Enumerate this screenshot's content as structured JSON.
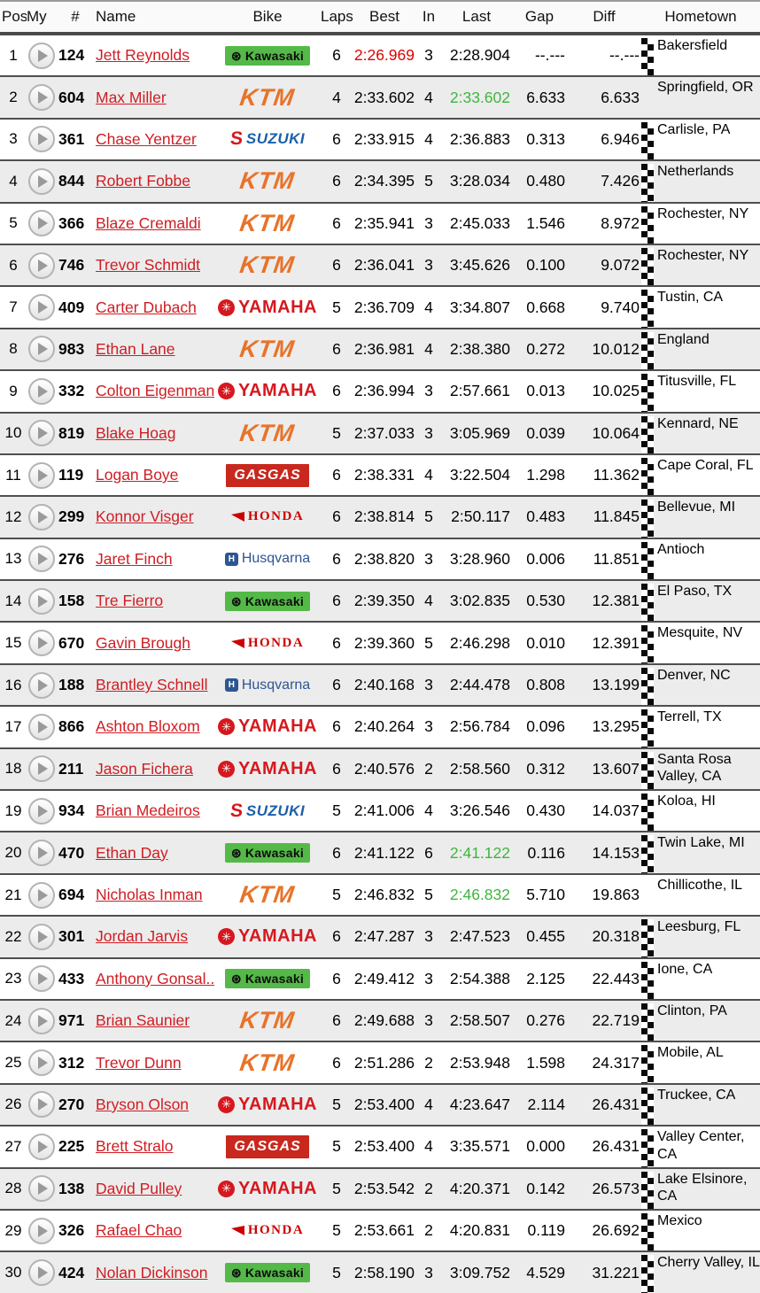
{
  "columns": [
    {
      "key": "pos",
      "label": "Pos"
    },
    {
      "key": "my",
      "label": "My"
    },
    {
      "key": "num",
      "label": "#"
    },
    {
      "key": "name",
      "label": "Name"
    },
    {
      "key": "bike",
      "label": "Bike"
    },
    {
      "key": "laps",
      "label": "Laps"
    },
    {
      "key": "best",
      "label": "Best"
    },
    {
      "key": "in",
      "label": "In"
    },
    {
      "key": "last",
      "label": "Last"
    },
    {
      "key": "gap",
      "label": "Gap"
    },
    {
      "key": "diff",
      "label": "Diff"
    },
    {
      "key": "hometown",
      "label": "Hometown"
    }
  ],
  "colors": {
    "best_overall": "#e00000",
    "personal_best_green": "#3fb53f",
    "row_alt": "#ececec",
    "row_border": "#4f4f4f",
    "name_link": "#cf1d23"
  },
  "icons": {
    "play": "play-icon",
    "checkered_flag": "checkered-flag-icon"
  },
  "brands": {
    "kawasaki": {
      "label": "Kawasaki",
      "bg": "#54b948",
      "fg": "#0d0d0d"
    },
    "ktm": {
      "label": "KTM",
      "color": "#e8732a"
    },
    "suzuki": {
      "label": "SUZUKI",
      "mark": "S",
      "text_color": "#1b5fa8",
      "mark_color": "#d6181e"
    },
    "yamaha": {
      "label": "YAMAHA",
      "color": "#d6181e"
    },
    "gasgas": {
      "label": "GASGAS",
      "bg": "#c8281e",
      "fg": "#ffffff"
    },
    "honda": {
      "label": "HONDA",
      "color": "#cc0000"
    },
    "husqvarna": {
      "label": "Husqvarna",
      "color": "#2d5693"
    }
  },
  "rows": [
    {
      "pos": "1",
      "num": "124",
      "name": "Jett Reynolds",
      "bike": "kawasaki",
      "laps": "6",
      "best": "2:26.969",
      "best_style": "red",
      "in": "3",
      "last": "2:28.904",
      "last_style": "",
      "gap": "--.---",
      "diff": "--.---",
      "hometown": "Bakersfield",
      "flag": true
    },
    {
      "pos": "2",
      "num": "604",
      "name": "Max Miller",
      "bike": "ktm",
      "laps": "4",
      "best": "2:33.602",
      "best_style": "",
      "in": "4",
      "last": "2:33.602",
      "last_style": "green",
      "gap": "6.633",
      "diff": "6.633",
      "hometown": "Springfield, OR",
      "flag": false
    },
    {
      "pos": "3",
      "num": "361",
      "name": "Chase Yentzer",
      "bike": "suzuki",
      "laps": "6",
      "best": "2:33.915",
      "best_style": "",
      "in": "4",
      "last": "2:36.883",
      "last_style": "",
      "gap": "0.313",
      "diff": "6.946",
      "hometown": "Carlisle, PA",
      "flag": true
    },
    {
      "pos": "4",
      "num": "844",
      "name": "Robert Fobbe",
      "bike": "ktm",
      "laps": "6",
      "best": "2:34.395",
      "best_style": "",
      "in": "5",
      "last": "3:28.034",
      "last_style": "",
      "gap": "0.480",
      "diff": "7.426",
      "hometown": "Netherlands",
      "flag": true
    },
    {
      "pos": "5",
      "num": "366",
      "name": "Blaze Cremaldi",
      "bike": "ktm",
      "laps": "6",
      "best": "2:35.941",
      "best_style": "",
      "in": "3",
      "last": "2:45.033",
      "last_style": "",
      "gap": "1.546",
      "diff": "8.972",
      "hometown": "Rochester, NY",
      "flag": true
    },
    {
      "pos": "6",
      "num": "746",
      "name": "Trevor Schmidt",
      "bike": "ktm",
      "laps": "6",
      "best": "2:36.041",
      "best_style": "",
      "in": "3",
      "last": "3:45.626",
      "last_style": "",
      "gap": "0.100",
      "diff": "9.072",
      "hometown": "Rochester, NY",
      "flag": true
    },
    {
      "pos": "7",
      "num": "409",
      "name": "Carter Dubach",
      "bike": "yamaha",
      "laps": "5",
      "best": "2:36.709",
      "best_style": "",
      "in": "4",
      "last": "3:34.807",
      "last_style": "",
      "gap": "0.668",
      "diff": "9.740",
      "hometown": "Tustin, CA",
      "flag": true
    },
    {
      "pos": "8",
      "num": "983",
      "name": "Ethan Lane",
      "bike": "ktm",
      "laps": "6",
      "best": "2:36.981",
      "best_style": "",
      "in": "4",
      "last": "2:38.380",
      "last_style": "",
      "gap": "0.272",
      "diff": "10.012",
      "hometown": "England",
      "flag": true
    },
    {
      "pos": "9",
      "num": "332",
      "name": "Colton Eigenmann",
      "bike": "yamaha",
      "laps": "6",
      "best": "2:36.994",
      "best_style": "",
      "in": "3",
      "last": "2:57.661",
      "last_style": "",
      "gap": "0.013",
      "diff": "10.025",
      "hometown": "Titusville, FL",
      "flag": true
    },
    {
      "pos": "10",
      "num": "819",
      "name": "Blake Hoag",
      "bike": "ktm",
      "laps": "5",
      "best": "2:37.033",
      "best_style": "",
      "in": "3",
      "last": "3:05.969",
      "last_style": "",
      "gap": "0.039",
      "diff": "10.064",
      "hometown": "Kennard, NE",
      "flag": true
    },
    {
      "pos": "11",
      "num": "119",
      "name": "Logan Boye",
      "bike": "gasgas",
      "laps": "6",
      "best": "2:38.331",
      "best_style": "",
      "in": "4",
      "last": "3:22.504",
      "last_style": "",
      "gap": "1.298",
      "diff": "11.362",
      "hometown": "Cape Coral, FL",
      "flag": true
    },
    {
      "pos": "12",
      "num": "299",
      "name": "Konnor Visger",
      "bike": "honda",
      "laps": "6",
      "best": "2:38.814",
      "best_style": "",
      "in": "5",
      "last": "2:50.117",
      "last_style": "",
      "gap": "0.483",
      "diff": "11.845",
      "hometown": "Bellevue, MI",
      "flag": true
    },
    {
      "pos": "13",
      "num": "276",
      "name": "Jaret Finch",
      "bike": "husqvarna",
      "laps": "6",
      "best": "2:38.820",
      "best_style": "",
      "in": "3",
      "last": "3:28.960",
      "last_style": "",
      "gap": "0.006",
      "diff": "11.851",
      "hometown": "Antioch",
      "flag": true
    },
    {
      "pos": "14",
      "num": "158",
      "name": "Tre Fierro",
      "bike": "kawasaki",
      "laps": "6",
      "best": "2:39.350",
      "best_style": "",
      "in": "4",
      "last": "3:02.835",
      "last_style": "",
      "gap": "0.530",
      "diff": "12.381",
      "hometown": "El Paso, TX",
      "flag": true
    },
    {
      "pos": "15",
      "num": "670",
      "name": "Gavin Brough",
      "bike": "honda",
      "laps": "6",
      "best": "2:39.360",
      "best_style": "",
      "in": "5",
      "last": "2:46.298",
      "last_style": "",
      "gap": "0.010",
      "diff": "12.391",
      "hometown": "Mesquite, NV",
      "flag": true
    },
    {
      "pos": "16",
      "num": "188",
      "name": "Brantley Schnell",
      "bike": "husqvarna",
      "laps": "6",
      "best": "2:40.168",
      "best_style": "",
      "in": "3",
      "last": "2:44.478",
      "last_style": "",
      "gap": "0.808",
      "diff": "13.199",
      "hometown": "Denver, NC",
      "flag": true
    },
    {
      "pos": "17",
      "num": "866",
      "name": "Ashton Bloxom",
      "bike": "yamaha",
      "laps": "6",
      "best": "2:40.264",
      "best_style": "",
      "in": "3",
      "last": "2:56.784",
      "last_style": "",
      "gap": "0.096",
      "diff": "13.295",
      "hometown": "Terrell, TX",
      "flag": true
    },
    {
      "pos": "18",
      "num": "211",
      "name": "Jason Fichera",
      "bike": "yamaha",
      "laps": "6",
      "best": "2:40.576",
      "best_style": "",
      "in": "2",
      "last": "2:58.560",
      "last_style": "",
      "gap": "0.312",
      "diff": "13.607",
      "hometown": "Santa Rosa Valley, CA",
      "flag": true
    },
    {
      "pos": "19",
      "num": "934",
      "name": "Brian Medeiros",
      "bike": "suzuki",
      "laps": "5",
      "best": "2:41.006",
      "best_style": "",
      "in": "4",
      "last": "3:26.546",
      "last_style": "",
      "gap": "0.430",
      "diff": "14.037",
      "hometown": "Koloa, HI",
      "flag": true
    },
    {
      "pos": "20",
      "num": "470",
      "name": "Ethan Day",
      "bike": "kawasaki",
      "laps": "6",
      "best": "2:41.122",
      "best_style": "",
      "in": "6",
      "last": "2:41.122",
      "last_style": "green",
      "gap": "0.116",
      "diff": "14.153",
      "hometown": "Twin Lake, MI",
      "flag": true
    },
    {
      "pos": "21",
      "num": "694",
      "name": "Nicholas Inman",
      "bike": "ktm",
      "laps": "5",
      "best": "2:46.832",
      "best_style": "",
      "in": "5",
      "last": "2:46.832",
      "last_style": "green",
      "gap": "5.710",
      "diff": "19.863",
      "hometown": "Chillicothe, IL",
      "flag": false
    },
    {
      "pos": "22",
      "num": "301",
      "name": "Jordan Jarvis",
      "bike": "yamaha",
      "laps": "6",
      "best": "2:47.287",
      "best_style": "",
      "in": "3",
      "last": "2:47.523",
      "last_style": "",
      "gap": "0.455",
      "diff": "20.318",
      "hometown": "Leesburg, FL",
      "flag": true
    },
    {
      "pos": "23",
      "num": "433",
      "name": "Anthony Gonsal...",
      "bike": "kawasaki",
      "laps": "6",
      "best": "2:49.412",
      "best_style": "",
      "in": "3",
      "last": "2:54.388",
      "last_style": "",
      "gap": "2.125",
      "diff": "22.443",
      "hometown": "Ione, CA",
      "flag": true
    },
    {
      "pos": "24",
      "num": "971",
      "name": "Brian Saunier",
      "bike": "ktm",
      "laps": "6",
      "best": "2:49.688",
      "best_style": "",
      "in": "3",
      "last": "2:58.507",
      "last_style": "",
      "gap": "0.276",
      "diff": "22.719",
      "hometown": "Clinton, PA",
      "flag": true
    },
    {
      "pos": "25",
      "num": "312",
      "name": "Trevor Dunn",
      "bike": "ktm",
      "laps": "6",
      "best": "2:51.286",
      "best_style": "",
      "in": "2",
      "last": "2:53.948",
      "last_style": "",
      "gap": "1.598",
      "diff": "24.317",
      "hometown": "Mobile, AL",
      "flag": true
    },
    {
      "pos": "26",
      "num": "270",
      "name": "Bryson Olson",
      "bike": "yamaha",
      "laps": "5",
      "best": "2:53.400",
      "best_style": "",
      "in": "4",
      "last": "4:23.647",
      "last_style": "",
      "gap": "2.114",
      "diff": "26.431",
      "hometown": "Truckee, CA",
      "flag": true
    },
    {
      "pos": "27",
      "num": "225",
      "name": "Brett Stralo",
      "bike": "gasgas",
      "laps": "5",
      "best": "2:53.400",
      "best_style": "",
      "in": "4",
      "last": "3:35.571",
      "last_style": "",
      "gap": "0.000",
      "diff": "26.431",
      "hometown": "Valley Center, CA",
      "flag": true
    },
    {
      "pos": "28",
      "num": "138",
      "name": "David Pulley",
      "bike": "yamaha",
      "laps": "5",
      "best": "2:53.542",
      "best_style": "",
      "in": "2",
      "last": "4:20.371",
      "last_style": "",
      "gap": "0.142",
      "diff": "26.573",
      "hometown": "Lake Elsinore, CA",
      "flag": true
    },
    {
      "pos": "29",
      "num": "326",
      "name": "Rafael Chao",
      "bike": "honda",
      "laps": "5",
      "best": "2:53.661",
      "best_style": "",
      "in": "2",
      "last": "4:20.831",
      "last_style": "",
      "gap": "0.119",
      "diff": "26.692",
      "hometown": "Mexico",
      "flag": true
    },
    {
      "pos": "30",
      "num": "424",
      "name": "Nolan Dickinson",
      "bike": "kawasaki",
      "laps": "5",
      "best": "2:58.190",
      "best_style": "",
      "in": "3",
      "last": "3:09.752",
      "last_style": "",
      "gap": "4.529",
      "diff": "31.221",
      "hometown": "Cherry Valley, IL",
      "flag": true
    }
  ]
}
